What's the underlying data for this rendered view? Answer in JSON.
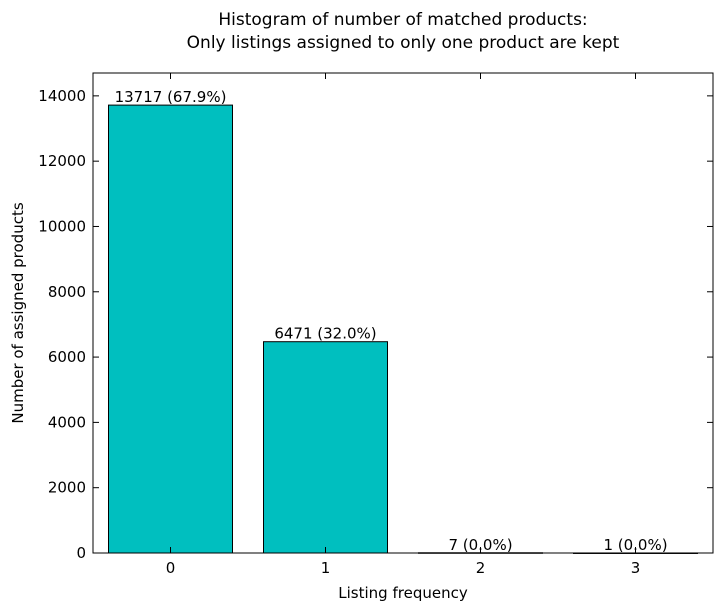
{
  "chart_data": {
    "type": "bar",
    "title_lines": [
      "Histogram of number of matched products:",
      "Only listings assigned to only one product are kept"
    ],
    "xlabel": "Listing frequency",
    "ylabel": "Number of assigned products",
    "categories": [
      "0",
      "1",
      "2",
      "3"
    ],
    "values": [
      13717,
      6471,
      7,
      1
    ],
    "data_labels": [
      "13717 (67.9%)",
      "6471 (32.0%)",
      "7 (0.0%)",
      "1 (0.0%)"
    ],
    "xlim": [
      -0.5,
      3.5
    ],
    "ylim": [
      0,
      14700
    ],
    "yticks": [
      0,
      2000,
      4000,
      6000,
      8000,
      10000,
      12000,
      14000
    ],
    "bar_color": "#00bfbf",
    "edge_color": "#000000",
    "grid": false
  }
}
